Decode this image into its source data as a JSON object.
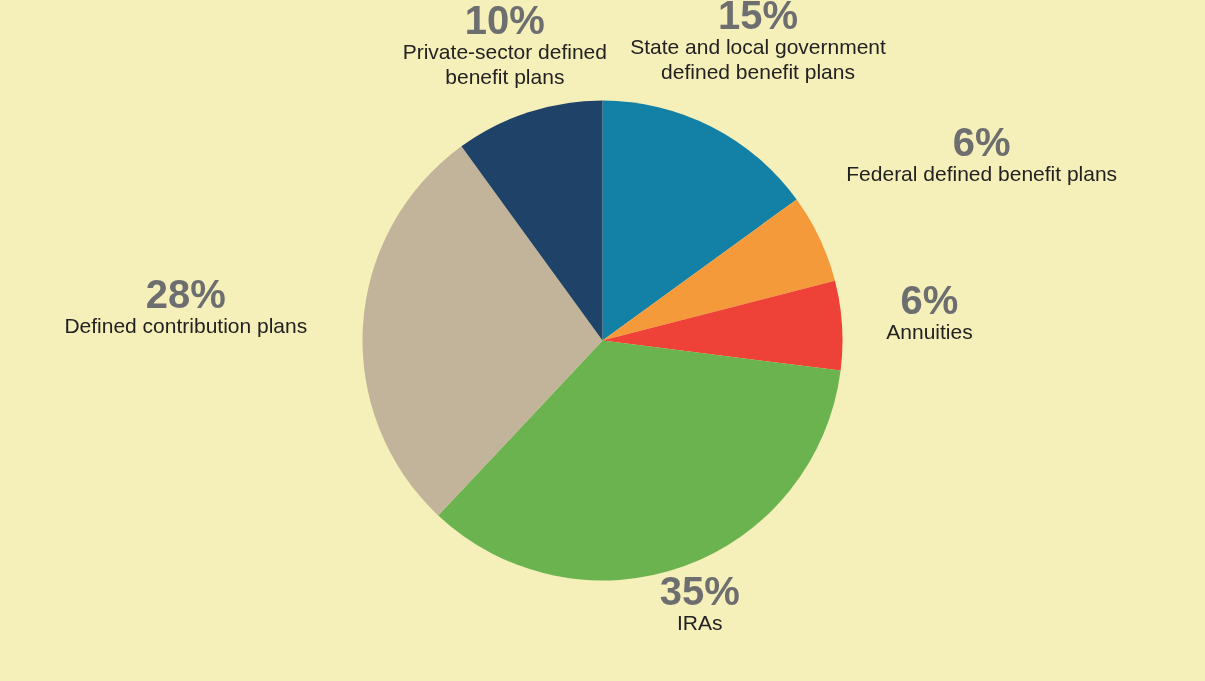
{
  "chart_data": {
    "type": "pie",
    "categories": [
      "State and local government defined benefit plans",
      "Federal defined benefit plans",
      "Annuities",
      "IRAs",
      "Defined contribution plans",
      "Private-sector defined benefit plans"
    ],
    "values": [
      15,
      6,
      6,
      35,
      28,
      10
    ],
    "value_labels": [
      "15%",
      "6%",
      "6%",
      "35%",
      "28%",
      "10%"
    ],
    "colors": [
      "#1380a5",
      "#f59a3a",
      "#ee4137",
      "#6bb34f",
      "#c2b49a",
      "#1f4268"
    ]
  }
}
